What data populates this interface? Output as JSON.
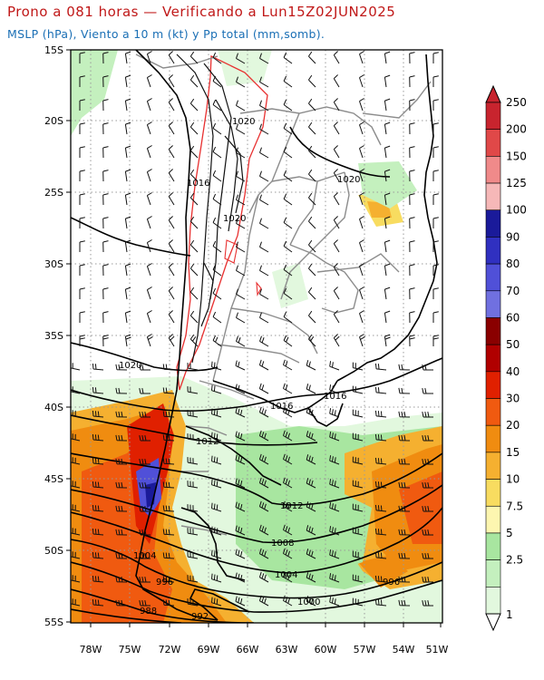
{
  "header": {
    "title": "Prono a 081 horas — Verificando a Lun15Z02JUN2025",
    "subtitle": "MSLP (hPa), Viento a 10 m (kt) y Pp total (mm,somb)."
  },
  "map": {
    "lat_labels": [
      "15S",
      "20S",
      "25S",
      "30S",
      "35S",
      "40S",
      "45S",
      "50S",
      "55S"
    ],
    "lon_labels": [
      "78W",
      "75W",
      "72W",
      "69W",
      "66W",
      "63W",
      "60W",
      "57W",
      "54W",
      "51W"
    ],
    "isobar_labels": [
      "1020",
      "1016",
      "1020",
      "1020",
      "1020",
      "1016",
      "1016",
      "1012",
      "1012",
      "1008",
      "1004",
      "1004",
      "1000",
      "996",
      "996",
      "992",
      "988"
    ],
    "colors": {
      "isobar": "#000000",
      "coast": "#000000",
      "borders": "#8c8c8c",
      "andes_contour": "#e83030",
      "gridline": "#9a9a9a"
    }
  },
  "colorbar": {
    "labels": [
      "250",
      "200",
      "150",
      "125",
      "100",
      "90",
      "80",
      "70",
      "60",
      "50",
      "40",
      "30",
      "20",
      "15",
      "10",
      "7.5",
      "5",
      "2.5",
      "1"
    ],
    "colors": [
      "#c8242e",
      "#e04848",
      "#f08a8a",
      "#f6b8b8",
      "#1a1a9a",
      "#3030c0",
      "#5050d8",
      "#7070e0",
      "#8a0000",
      "#b00000",
      "#e02000",
      "#f05a10",
      "#f08c10",
      "#f5b030",
      "#f8dc60",
      "#fdf6b0",
      "#a8e6a0",
      "#c4f0be",
      "#e2f8de"
    ],
    "units": "mm"
  }
}
